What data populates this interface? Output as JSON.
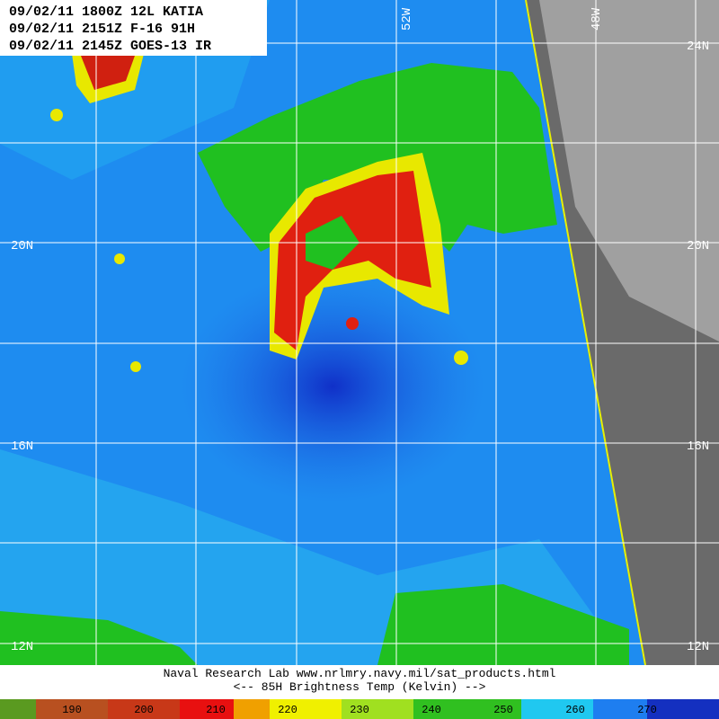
{
  "header": {
    "lines": [
      "09/02/11 1800Z 12L KATIA",
      "09/02/11 2151Z F-16 91H",
      "09/02/11 2145Z GOES-13 IR"
    ]
  },
  "grid_labels": {
    "longitude": [
      "52W",
      "48W"
    ],
    "latitude_left": [
      "20N",
      "16N",
      "12N"
    ],
    "latitude_right": [
      "24N",
      "20N",
      "16N",
      "12N"
    ]
  },
  "footer": {
    "lines": [
      "Naval Research Lab  www.nrlmry.navy.mil/sat_products.html",
      "<--   85H Brightness Temp (Kelvin)   -->"
    ]
  },
  "colorbar": {
    "labels": [
      190,
      200,
      210,
      220,
      230,
      240,
      250,
      260,
      270
    ]
  }
}
